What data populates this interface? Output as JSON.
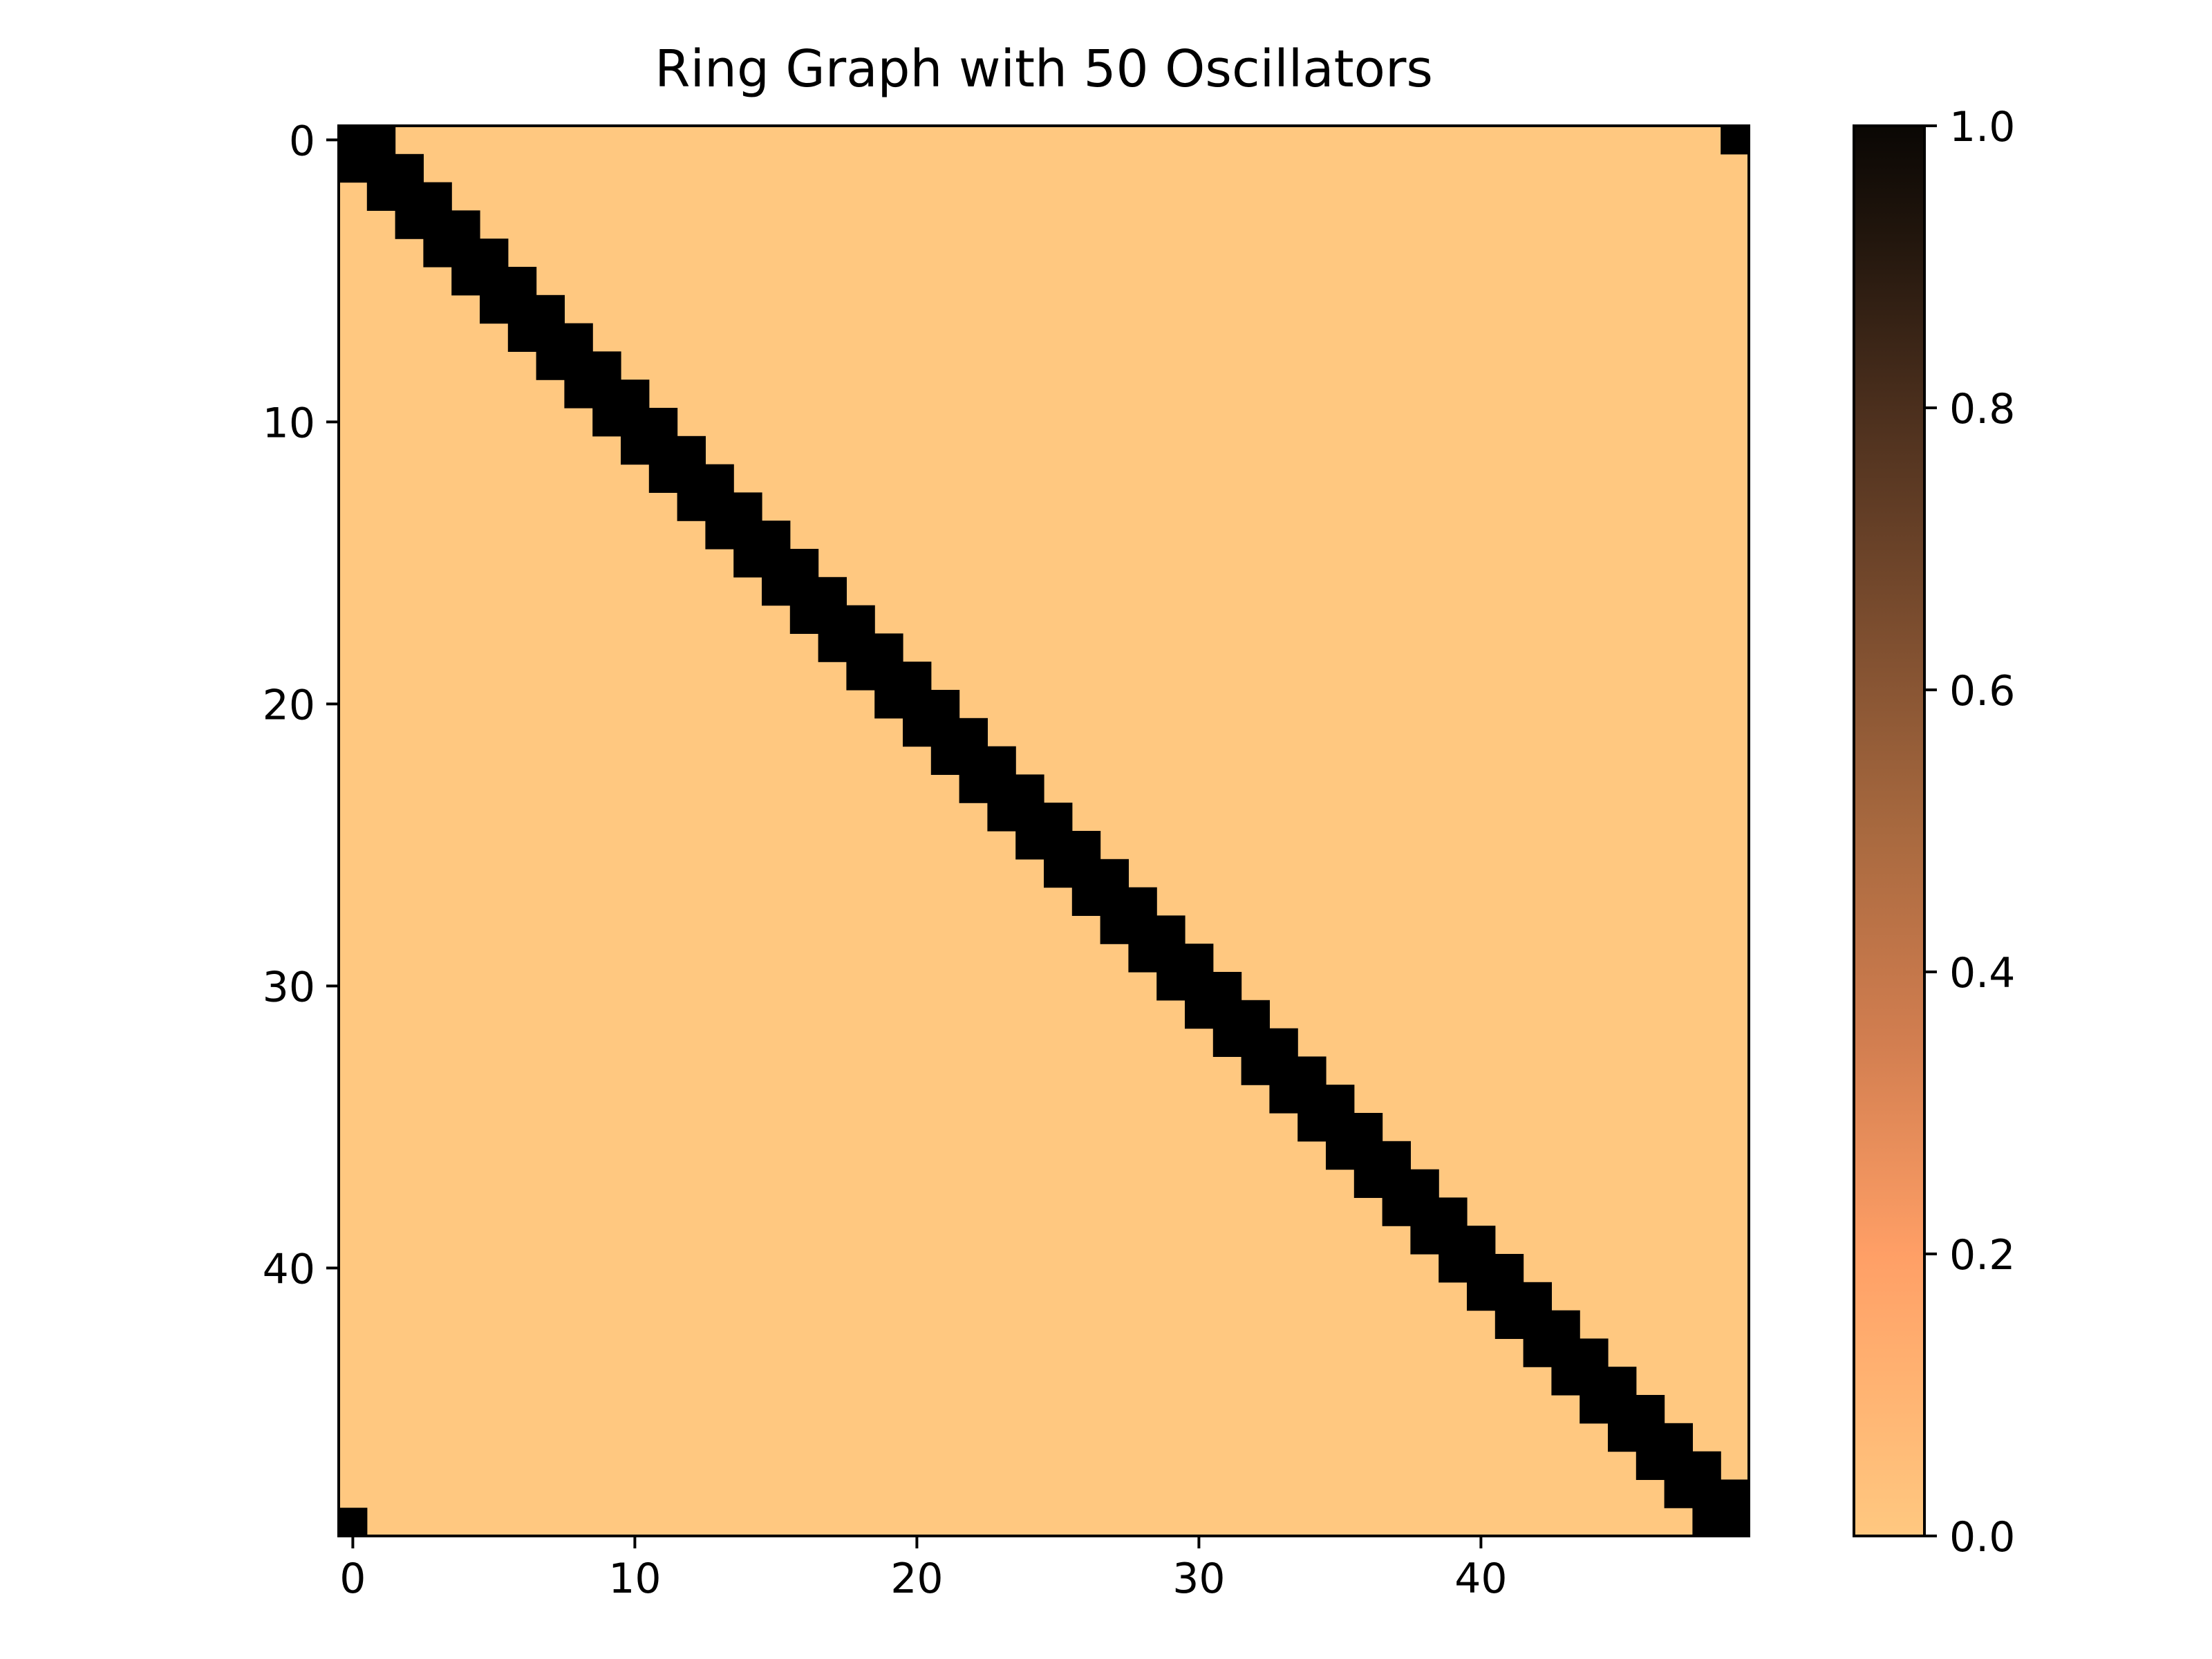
{
  "chart_data": {
    "type": "heatmap",
    "title": "Ring Graph with 50 Oscillators",
    "xlabel": "",
    "ylabel": "",
    "n": 50,
    "grid": false,
    "x_ticks": [
      0,
      10,
      20,
      30,
      40
    ],
    "y_ticks": [
      0,
      10,
      20,
      30,
      40
    ],
    "xlim": [
      -0.5,
      49.5
    ],
    "ylim": [
      49.5,
      -0.5
    ],
    "values_description_rule": "cell (i,j) = 1 if j = i or |i-j| = 1 or |i-j| = 49, else 0",
    "colorbar": {
      "min": 0.0,
      "max": 1.0,
      "ticks": [
        "0.0",
        "0.2",
        "0.4",
        "0.6",
        "0.8",
        "1.0"
      ],
      "placement": "right"
    },
    "colors": {
      "low": "#ffc880",
      "high": "#000000"
    }
  }
}
